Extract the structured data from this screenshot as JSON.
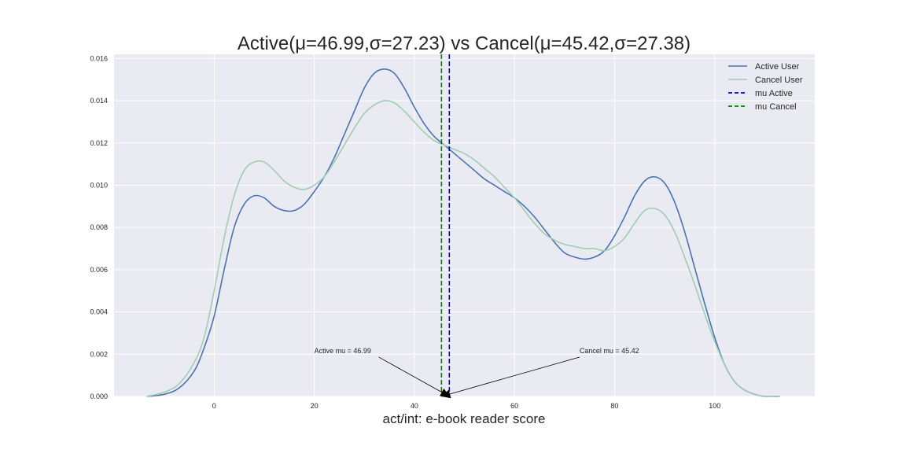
{
  "chart_data": {
    "type": "line",
    "title": "Active(μ=46.99,σ=27.23) vs Cancel(μ=45.42,σ=27.38)",
    "xlabel": "act/int: e-book reader score",
    "ylabel": "",
    "xlim": [
      -20,
      120
    ],
    "ylim": [
      0,
      0.0162
    ],
    "xticks": [
      0,
      20,
      40,
      60,
      80,
      100
    ],
    "yticks": [
      0.0,
      0.002,
      0.004,
      0.006,
      0.008,
      0.01,
      0.012,
      0.014,
      0.016
    ],
    "grid": true,
    "legend_position": "top-right",
    "series": [
      {
        "name": "Active User",
        "color": "#4c72b0",
        "x": [
          -13.5,
          -10,
          -7,
          -4,
          -2,
          0,
          2,
          4,
          6,
          8,
          10,
          12,
          14,
          16,
          18,
          20,
          22,
          24,
          26,
          28,
          30,
          32,
          34,
          36,
          38,
          40,
          42,
          44,
          46,
          48,
          50,
          52,
          54,
          56,
          58,
          60,
          62,
          64,
          66,
          68,
          70,
          72,
          74,
          76,
          78,
          80,
          82,
          84,
          86,
          88,
          90,
          92,
          94,
          96,
          98,
          100,
          102,
          104,
          106,
          108,
          110,
          113
        ],
        "y": [
          0.0,
          0.0001,
          0.0004,
          0.0012,
          0.0023,
          0.0038,
          0.006,
          0.008,
          0.0091,
          0.0095,
          0.0094,
          0.009,
          0.0088,
          0.0088,
          0.0091,
          0.0097,
          0.0104,
          0.0113,
          0.0124,
          0.0135,
          0.0146,
          0.0153,
          0.0155,
          0.0153,
          0.0146,
          0.0137,
          0.0129,
          0.0123,
          0.0119,
          0.0115,
          0.0111,
          0.0107,
          0.0103,
          0.01,
          0.0097,
          0.0094,
          0.009,
          0.0085,
          0.0079,
          0.0073,
          0.0068,
          0.0066,
          0.0065,
          0.0066,
          0.0069,
          0.0076,
          0.0085,
          0.0095,
          0.0102,
          0.0104,
          0.0101,
          0.0092,
          0.0078,
          0.0061,
          0.0044,
          0.0028,
          0.0015,
          0.0007,
          0.0003,
          0.0001,
          0.0,
          0.0
        ]
      },
      {
        "name": "Cancel User",
        "color": "#9fcdb1",
        "x": [
          -13.5,
          -10,
          -7,
          -4,
          -2,
          0,
          2,
          4,
          6,
          8,
          10,
          12,
          14,
          16,
          18,
          20,
          22,
          24,
          26,
          28,
          30,
          32,
          34,
          36,
          38,
          40,
          42,
          44,
          46,
          48,
          50,
          52,
          54,
          56,
          58,
          60,
          62,
          64,
          66,
          68,
          70,
          72,
          74,
          76,
          78,
          80,
          82,
          84,
          86,
          88,
          90,
          92,
          94,
          96,
          98,
          100,
          102,
          104,
          106,
          108,
          110,
          113
        ],
        "y": [
          0.0,
          0.0002,
          0.0006,
          0.0016,
          0.0028,
          0.005,
          0.0075,
          0.0095,
          0.0107,
          0.0111,
          0.0111,
          0.0107,
          0.0102,
          0.0099,
          0.0098,
          0.01,
          0.0104,
          0.0111,
          0.0119,
          0.0127,
          0.0134,
          0.0138,
          0.014,
          0.0139,
          0.0135,
          0.013,
          0.0125,
          0.0121,
          0.0119,
          0.0117,
          0.0115,
          0.0112,
          0.0108,
          0.0104,
          0.0099,
          0.0094,
          0.0088,
          0.0082,
          0.0077,
          0.0074,
          0.0072,
          0.0071,
          0.007,
          0.007,
          0.0069,
          0.0071,
          0.0075,
          0.0082,
          0.0088,
          0.0089,
          0.0086,
          0.0078,
          0.0066,
          0.0053,
          0.0039,
          0.0026,
          0.0015,
          0.0007,
          0.0003,
          0.0001,
          0.0,
          0.0
        ]
      }
    ],
    "vlines": [
      {
        "name": "mu Active",
        "x": 46.99,
        "color": "#0000cc"
      },
      {
        "name": "mu Cancel",
        "x": 45.42,
        "color": "#008000"
      }
    ],
    "annotations": [
      {
        "text": "Active mu = 46.99",
        "text_x": 20,
        "text_y": 0.00205,
        "target_x": 46.99,
        "target_y": 0
      },
      {
        "text": "Cancel mu = 45.42",
        "text_x": 73,
        "text_y": 0.00205,
        "target_x": 45.42,
        "target_y": 0
      }
    ]
  }
}
